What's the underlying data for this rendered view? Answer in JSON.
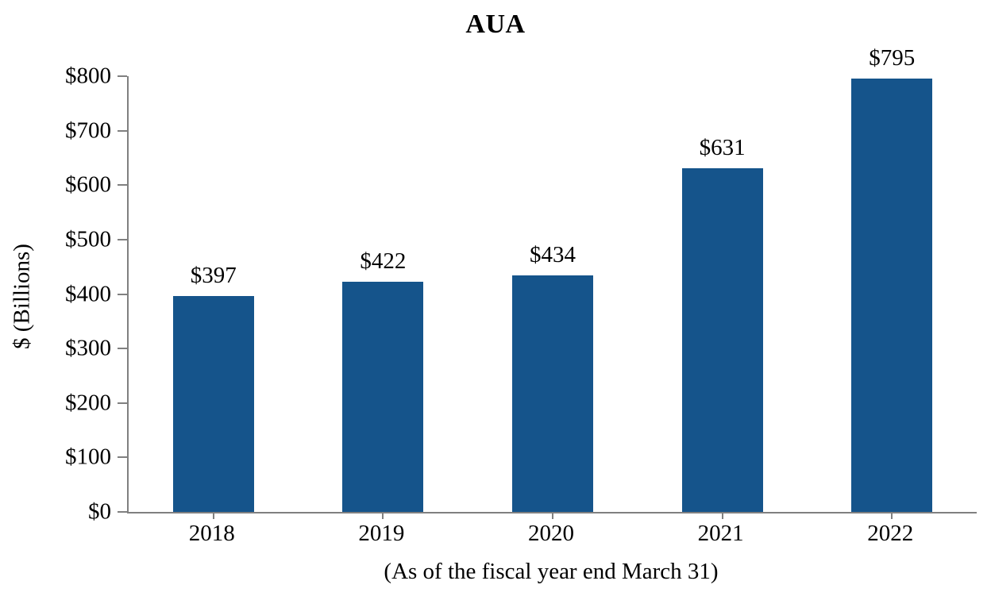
{
  "chart_data": {
    "type": "bar",
    "title": "AUA",
    "ylabel": "$ (Billions)",
    "xlabel": "(As of the fiscal year end March 31)",
    "categories": [
      "2018",
      "2019",
      "2020",
      "2021",
      "2022"
    ],
    "values": [
      397,
      422,
      434,
      631,
      795
    ],
    "data_labels": [
      "$397",
      "$422",
      "$434",
      "$631",
      "$795"
    ],
    "ylim": [
      0,
      800
    ],
    "ytick_step": 100,
    "ytick_labels": [
      "$0",
      "$100",
      "$200",
      "$300",
      "$400",
      "$500",
      "$600",
      "$700",
      "$800"
    ],
    "grid": "off",
    "legend": "none",
    "colors": {
      "bar": "#15548B",
      "axis": "#808080",
      "text": "#000000",
      "background": "#FFFFFF"
    }
  }
}
